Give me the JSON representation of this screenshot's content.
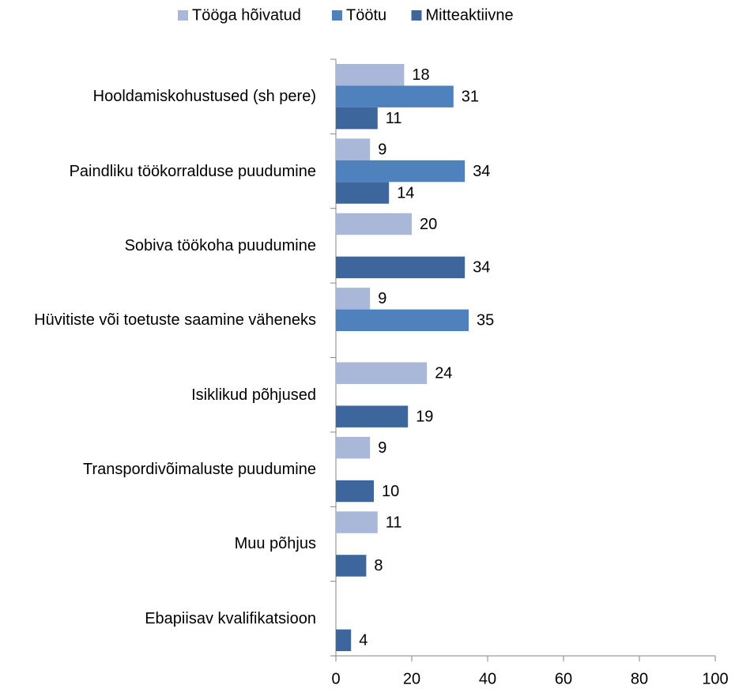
{
  "chart_data": {
    "type": "bar",
    "orientation": "horizontal",
    "categories": [
      "Hooldamiskohustused (sh pere)",
      "Paindliku töökorralduse puudumine",
      "Sobiva töökoha puudumine",
      "Hüvitiste või toetuste saamine väheneks",
      "Isiklikud põhjused",
      "Transpordivõimaluste puudumine",
      "Muu põhjus",
      "Ebapiisav kvalifikatsioon"
    ],
    "series": [
      {
        "name": "Tööga hõivatud",
        "color": "#a9b8d9",
        "values": [
          18,
          9,
          20,
          9,
          24,
          9,
          11,
          null
        ]
      },
      {
        "name": "Töötu",
        "color": "#4f81bd",
        "values": [
          31,
          34,
          null,
          35,
          null,
          null,
          null,
          null
        ]
      },
      {
        "name": "Mitteaktiivne",
        "color": "#3d679c",
        "values": [
          11,
          14,
          34,
          null,
          19,
          10,
          8,
          4
        ]
      }
    ],
    "xlim": [
      0,
      100
    ],
    "xticks": [
      0,
      20,
      40,
      60,
      80,
      100
    ],
    "legend": "top"
  }
}
